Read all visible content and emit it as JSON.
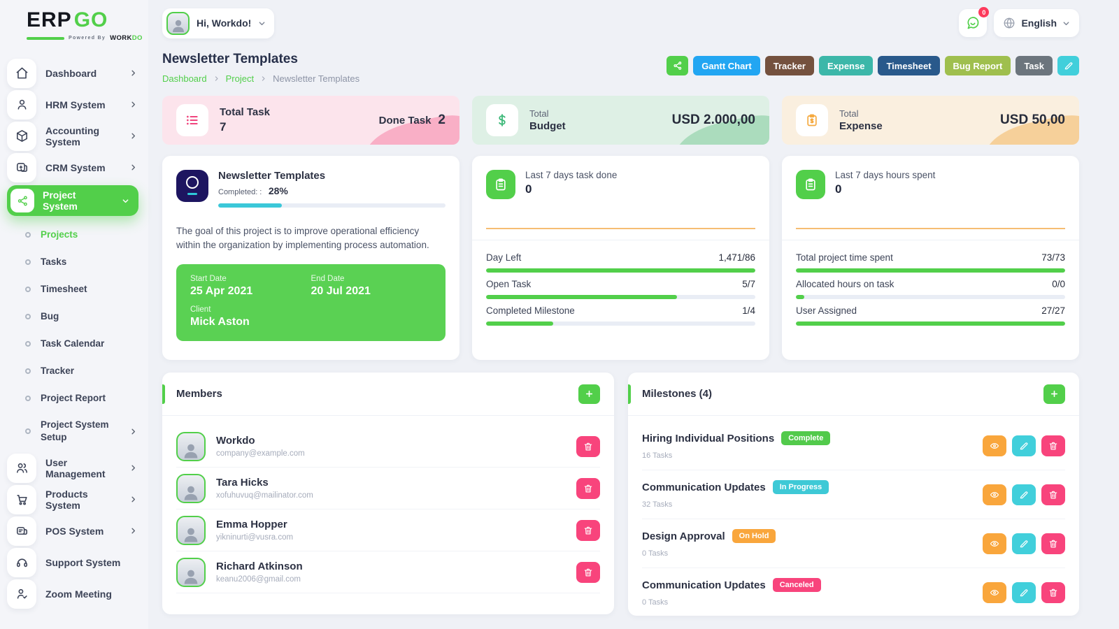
{
  "brand": {
    "erp": "ERP",
    "go": "GO",
    "powered_by": "Powered By",
    "workdo_black": "WORK",
    "workdo_green": "DO"
  },
  "topbar": {
    "greeting": "Hi, Workdo!",
    "language": "English",
    "message_badge": "0"
  },
  "page": {
    "title": "Newsletter Templates",
    "breadcrumb": [
      "Dashboard",
      "Project",
      "Newsletter Templates"
    ]
  },
  "toolbar": {
    "buttons": [
      {
        "label": "Gantt Chart",
        "color": "#22a6f2"
      },
      {
        "label": "Tracker",
        "color": "#74513e"
      },
      {
        "label": "Expense",
        "color": "#3cb7a9"
      },
      {
        "label": "Timesheet",
        "color": "#29598b"
      },
      {
        "label": "Bug Report",
        "color": "#9fbf4e"
      },
      {
        "label": "Task",
        "color": "#6c757d"
      }
    ],
    "share_icon": "share-icon",
    "edit_icon": "pencil-icon"
  },
  "sidebar": {
    "items_top": [
      {
        "label": "Dashboard",
        "icon": "home-icon"
      },
      {
        "label": "HRM System",
        "icon": "user-icon"
      },
      {
        "label": "Accounting System",
        "icon": "cube-icon"
      },
      {
        "label": "CRM System",
        "icon": "card-icon"
      },
      {
        "label": "Project System",
        "icon": "share-icon"
      }
    ],
    "sub_items": [
      {
        "label": "Projects"
      },
      {
        "label": "Tasks"
      },
      {
        "label": "Timesheet"
      },
      {
        "label": "Bug"
      },
      {
        "label": "Task Calendar"
      },
      {
        "label": "Tracker"
      },
      {
        "label": "Project Report"
      },
      {
        "label": "Project System Setup"
      }
    ],
    "items_bottom": [
      {
        "label": "User Management",
        "icon": "users-icon"
      },
      {
        "label": "Products System",
        "icon": "cart-icon"
      },
      {
        "label": "POS System",
        "icon": "pos-icon"
      },
      {
        "label": "Support System",
        "icon": "headset-icon"
      },
      {
        "label": "Zoom Meeting",
        "icon": "person-video-icon"
      }
    ]
  },
  "stat_cards": {
    "task": {
      "title": "Total Task",
      "value": "7",
      "done_label": "Done Task",
      "done_value": "2"
    },
    "budget": {
      "label_top": "Total",
      "label": "Budget",
      "amount": "USD 2.000,00"
    },
    "expense": {
      "label_top": "Total",
      "label": "Expense",
      "amount": "USD 50,00"
    }
  },
  "project_card": {
    "title": "Newsletter Templates",
    "completed_label": "Completed: :",
    "completed_value": "28%",
    "progress_pct": 28,
    "description": "The goal of this project is to improve operational efficiency within the organization by implementing process automation.",
    "start_label": "Start Date",
    "start_date": "25 Apr 2021",
    "end_label": "End Date",
    "end_date": "20 Jul 2021",
    "client_label": "Client",
    "client_name": "Mick Aston"
  },
  "task_card": {
    "header_label": "Last 7 days task done",
    "header_value": "0",
    "metrics": [
      {
        "label": "Day Left",
        "value": "1,471/86",
        "pct": 100
      },
      {
        "label": "Open Task",
        "value": "5/7",
        "pct": 71
      },
      {
        "label": "Completed Milestone",
        "value": "1/4",
        "pct": 25
      }
    ]
  },
  "hours_card": {
    "header_label": "Last 7 days hours spent",
    "header_value": "0",
    "metrics": [
      {
        "label": "Total project time spent",
        "value": "73/73",
        "pct": 100
      },
      {
        "label": "Allocated hours on task",
        "value": "0/0",
        "pct": 3
      },
      {
        "label": "User Assigned",
        "value": "27/27",
        "pct": 100
      }
    ]
  },
  "members": {
    "title": "Members",
    "items": [
      {
        "name": "Workdo",
        "email": "company@example.com"
      },
      {
        "name": "Tara Hicks",
        "email": "xofuhuvuq@mailinator.com"
      },
      {
        "name": "Emma Hopper",
        "email": "yikninurti@vusra.com"
      },
      {
        "name": "Richard Atkinson",
        "email": "keanu2006@gmail.com"
      }
    ]
  },
  "milestones": {
    "title": "Milestones (4)",
    "items": [
      {
        "name": "Hiring Individual Positions",
        "status": "Complete",
        "tasks": "16 Tasks",
        "color": "#52ca4b"
      },
      {
        "name": "Communication Updates",
        "status": "In Progress",
        "tasks": "32 Tasks",
        "color": "#3ec9d6"
      },
      {
        "name": "Design Approval",
        "status": "On Hold",
        "tasks": "0 Tasks",
        "color": "#f9a63c"
      },
      {
        "name": "Communication Updates",
        "status": "Canceled",
        "tasks": "0 Tasks",
        "color": "#f8447c"
      }
    ]
  },
  "colors": {
    "primary_green": "#52cf4a",
    "progress_teal": "#3bc8d9",
    "pink": "#f8447c",
    "orange": "#f9a63c"
  }
}
